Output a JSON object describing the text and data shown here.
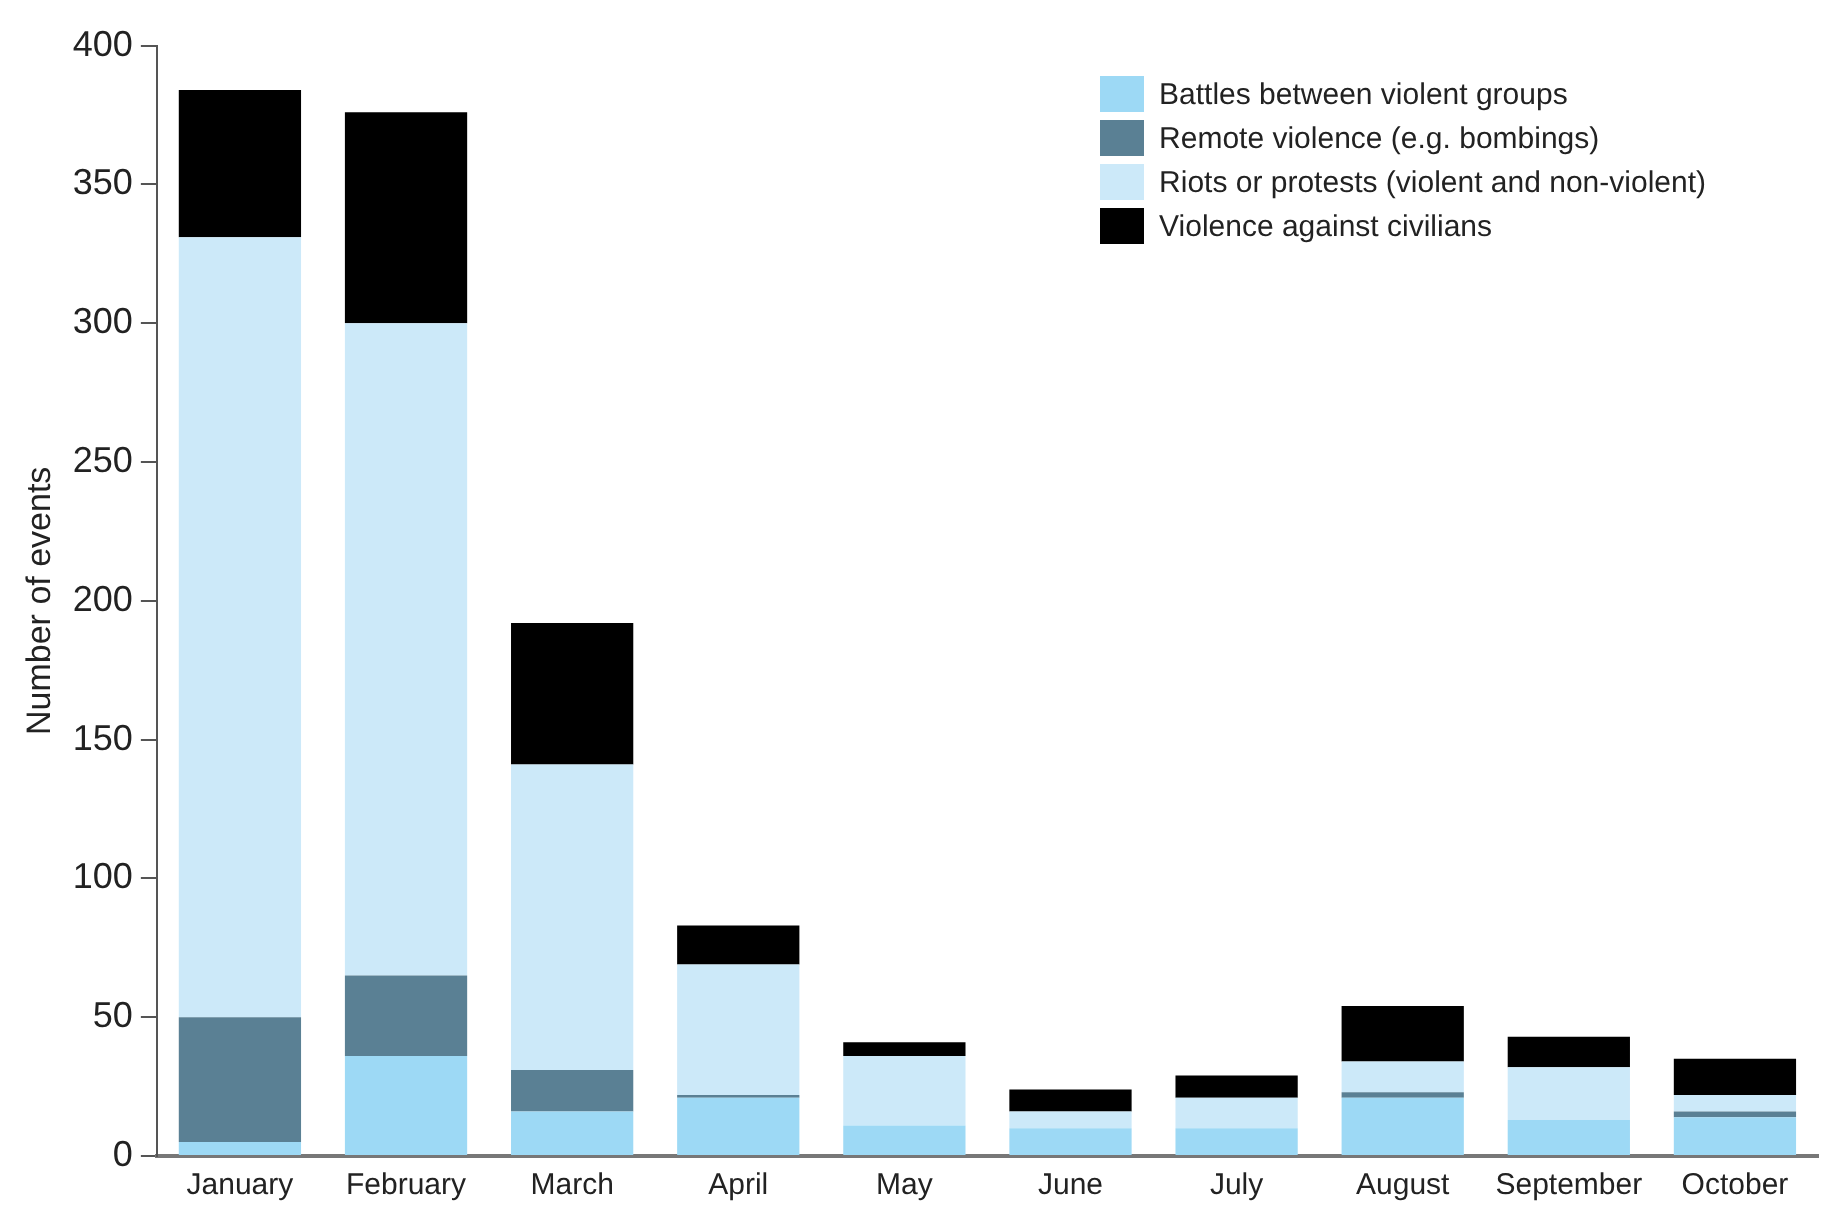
{
  "chart_data": {
    "type": "bar",
    "stacked": true,
    "ylabel": "Number of events",
    "categories": [
      "January",
      "February",
      "March",
      "April",
      "May",
      "June",
      "July",
      "August",
      "September",
      "October"
    ],
    "series": [
      {
        "name": "Battles between violent groups",
        "color": "#9dd9f5",
        "values": [
          5,
          36,
          16,
          21,
          11,
          10,
          10,
          21,
          13,
          14
        ]
      },
      {
        "name": "Remote violence (e.g. bombings)",
        "color": "#5a8094",
        "values": [
          45,
          29,
          15,
          1,
          0,
          0,
          0,
          2,
          0,
          2
        ]
      },
      {
        "name": "Riots or protests (violent and non-violent)",
        "color": "#cce9f9",
        "values": [
          281,
          235,
          110,
          47,
          25,
          6,
          11,
          11,
          19,
          6
        ]
      },
      {
        "name": "Violence against civilians",
        "color": "#000000",
        "values": [
          53,
          76,
          51,
          14,
          5,
          8,
          8,
          20,
          11,
          13
        ]
      }
    ],
    "ylim": [
      0,
      400
    ],
    "yticks": [
      0,
      50,
      100,
      150,
      200,
      250,
      300,
      350,
      400
    ],
    "grid": false,
    "legend": "top right"
  }
}
